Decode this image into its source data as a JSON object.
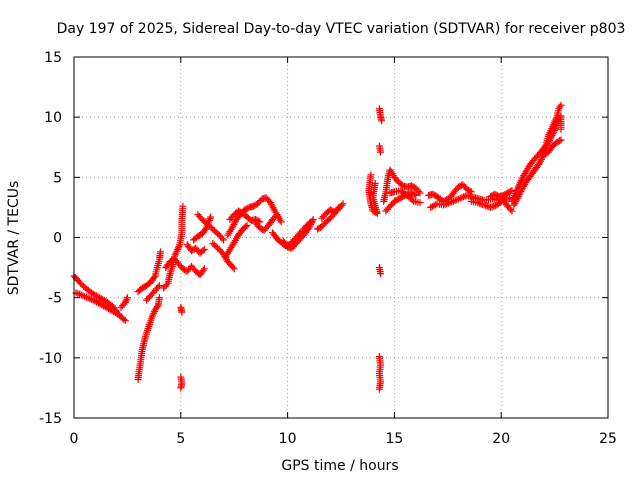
{
  "chart_data": {
    "type": "scatter",
    "title": "Day 197 of 2025, Sidereal Day-to-day VTEC variation (SDTVAR) for receiver p803",
    "xlabel": "GPS time / hours",
    "ylabel": "SDTVAR / TECUs",
    "xlim": [
      0,
      25
    ],
    "ylim": [
      -15,
      15
    ],
    "xticks": [
      0,
      5,
      10,
      15,
      20,
      25
    ],
    "yticks": [
      -15,
      -10,
      -5,
      0,
      5,
      10,
      15
    ],
    "xtick_labels": [
      "0",
      "5",
      "10",
      "15",
      "20",
      "25"
    ],
    "ytick_labels": [
      "-15",
      "-10",
      "-5",
      "0",
      "5",
      "10",
      "15"
    ],
    "grid": true,
    "marker": "plus",
    "color": "#ff0000",
    "series": [
      {
        "name": "SDTVAR",
        "segments": [
          [
            [
              0.0,
              -3.2
            ],
            [
              0.3,
              -3.8
            ],
            [
              0.6,
              -4.3
            ],
            [
              0.9,
              -4.7
            ],
            [
              1.2,
              -5.0
            ],
            [
              1.5,
              -5.3
            ],
            [
              1.8,
              -5.7
            ],
            [
              2.0,
              -6.2
            ],
            [
              2.2,
              -6.6
            ],
            [
              2.4,
              -6.9
            ]
          ],
          [
            [
              0.1,
              -4.6
            ],
            [
              0.5,
              -4.9
            ],
            [
              0.9,
              -5.2
            ],
            [
              1.3,
              -5.6
            ],
            [
              1.7,
              -6.0
            ],
            [
              2.1,
              -6.4
            ]
          ],
          [
            [
              2.2,
              -5.8
            ],
            [
              2.4,
              -5.4
            ],
            [
              2.5,
              -5.0
            ]
          ],
          [
            [
              3.0,
              -11.8
            ],
            [
              3.1,
              -10.5
            ],
            [
              3.2,
              -9.3
            ],
            [
              3.35,
              -8.2
            ],
            [
              3.5,
              -7.4
            ],
            [
              3.65,
              -6.6
            ],
            [
              3.8,
              -6.0
            ],
            [
              3.95,
              -5.6
            ],
            [
              4.0,
              -5.0
            ]
          ],
          [
            [
              3.0,
              -4.5
            ],
            [
              3.2,
              -4.2
            ],
            [
              3.4,
              -4.0
            ],
            [
              3.6,
              -3.7
            ],
            [
              3.8,
              -3.2
            ],
            [
              3.9,
              -2.5
            ],
            [
              4.0,
              -1.8
            ],
            [
              4.05,
              -1.2
            ]
          ],
          [
            [
              3.4,
              -5.2
            ],
            [
              3.6,
              -4.8
            ],
            [
              3.8,
              -4.4
            ],
            [
              4.0,
              -4.0
            ]
          ],
          [
            [
              4.2,
              -4.2
            ],
            [
              4.4,
              -3.8
            ],
            [
              4.5,
              -3.0
            ],
            [
              4.6,
              -2.4
            ],
            [
              4.7,
              -1.6
            ],
            [
              4.85,
              -1.0
            ],
            [
              4.95,
              -0.6
            ],
            [
              5.05,
              0.4
            ],
            [
              5.05,
              1.4
            ],
            [
              5.1,
              2.6
            ]
          ],
          [
            [
              4.3,
              -2.5
            ],
            [
              4.5,
              -2.0
            ],
            [
              4.7,
              -1.8
            ],
            [
              4.9,
              -2.2
            ],
            [
              5.1,
              -2.6
            ],
            [
              5.3,
              -2.8
            ],
            [
              5.5,
              -2.4
            ],
            [
              5.7,
              -2.8
            ],
            [
              5.9,
              -3.1
            ],
            [
              6.1,
              -2.6
            ]
          ],
          [
            [
              5.0,
              -5.8
            ],
            [
              5.05,
              -6.2
            ]
          ],
          [
            [
              5.0,
              -11.6
            ],
            [
              5.05,
              -12.1
            ],
            [
              5.0,
              -12.5
            ]
          ],
          [
            [
              5.3,
              -0.6
            ],
            [
              5.5,
              -1.1
            ],
            [
              5.7,
              -0.9
            ],
            [
              5.9,
              -1.3
            ],
            [
              6.1,
              -1.0
            ]
          ],
          [
            [
              5.6,
              -0.2
            ],
            [
              5.8,
              0.1
            ],
            [
              6.0,
              0.3
            ],
            [
              6.2,
              0.8
            ],
            [
              6.3,
              1.3
            ],
            [
              6.4,
              1.7
            ]
          ],
          [
            [
              5.8,
              1.9
            ],
            [
              6.0,
              1.5
            ],
            [
              6.2,
              1.2
            ],
            [
              6.5,
              0.7
            ],
            [
              6.8,
              0.2
            ],
            [
              7.0,
              -0.2
            ]
          ],
          [
            [
              6.5,
              -0.5
            ],
            [
              6.8,
              -1.0
            ],
            [
              7.0,
              -1.4
            ],
            [
              7.2,
              -2.0
            ],
            [
              7.5,
              -2.6
            ]
          ],
          [
            [
              7.1,
              -1.6
            ],
            [
              7.3,
              -1.0
            ],
            [
              7.5,
              -0.4
            ],
            [
              7.7,
              0.2
            ],
            [
              7.9,
              0.7
            ],
            [
              8.1,
              1.0
            ]
          ],
          [
            [
              7.2,
              0.2
            ],
            [
              7.4,
              0.8
            ],
            [
              7.6,
              1.5
            ],
            [
              7.8,
              2.0
            ],
            [
              8.0,
              2.3
            ],
            [
              8.2,
              2.5
            ],
            [
              8.4,
              2.6
            ],
            [
              8.6,
              2.8
            ],
            [
              8.8,
              3.2
            ],
            [
              9.0,
              3.3
            ],
            [
              9.2,
              2.9
            ],
            [
              9.4,
              2.2
            ],
            [
              9.6,
              1.6
            ]
          ],
          [
            [
              7.3,
              1.5
            ],
            [
              7.5,
              1.9
            ],
            [
              7.7,
              2.2
            ],
            [
              7.9,
              2.0
            ],
            [
              8.1,
              1.7
            ],
            [
              8.3,
              1.4
            ],
            [
              8.5,
              1.5
            ],
            [
              8.7,
              1.3
            ]
          ],
          [
            [
              8.5,
              1.2
            ],
            [
              8.7,
              0.8
            ],
            [
              8.9,
              0.6
            ],
            [
              9.1,
              1.0
            ],
            [
              9.3,
              1.5
            ],
            [
              9.5,
              1.9
            ],
            [
              9.7,
              1.3
            ]
          ],
          [
            [
              9.3,
              0.4
            ],
            [
              9.5,
              -0.1
            ],
            [
              9.7,
              -0.4
            ],
            [
              9.9,
              -0.7
            ],
            [
              10.1,
              -0.6
            ],
            [
              10.3,
              -0.2
            ],
            [
              10.5,
              0.2
            ],
            [
              10.7,
              0.6
            ],
            [
              10.9,
              1.0
            ],
            [
              11.1,
              1.3
            ]
          ],
          [
            [
              9.8,
              -0.3
            ],
            [
              10.0,
              -0.8
            ],
            [
              10.2,
              -0.9
            ],
            [
              10.4,
              -0.5
            ],
            [
              10.6,
              -0.1
            ],
            [
              10.8,
              0.3
            ],
            [
              11.0,
              0.8
            ],
            [
              11.2,
              1.5
            ]
          ],
          [
            [
              11.4,
              0.7
            ],
            [
              11.6,
              0.9
            ],
            [
              11.8,
              1.3
            ],
            [
              12.0,
              1.6
            ],
            [
              12.2,
              2.0
            ],
            [
              12.4,
              2.4
            ],
            [
              12.6,
              2.8
            ]
          ],
          [
            [
              11.6,
              1.6
            ],
            [
              11.8,
              2.0
            ],
            [
              12.0,
              2.3
            ],
            [
              12.2,
              2.1
            ],
            [
              12.4,
              2.5
            ]
          ],
          [
            [
              13.9,
              5.2
            ],
            [
              13.8,
              3.9
            ],
            [
              13.9,
              2.8
            ],
            [
              14.0,
              2.2
            ],
            [
              14.2,
              2.0
            ],
            [
              14.0,
              3.3
            ],
            [
              14.1,
              4.5
            ]
          ],
          [
            [
              14.3,
              10.7
            ],
            [
              14.35,
              10.1
            ],
            [
              14.4,
              9.7
            ]
          ],
          [
            [
              14.3,
              7.6
            ],
            [
              14.35,
              7.1
            ]
          ],
          [
            [
              14.3,
              -2.5
            ],
            [
              14.35,
              -3.0
            ]
          ],
          [
            [
              14.3,
              -9.9
            ],
            [
              14.35,
              -10.6
            ],
            [
              14.3,
              -11.3
            ],
            [
              14.35,
              -12.0
            ],
            [
              14.3,
              -12.6
            ]
          ],
          [
            [
              14.5,
              3.0
            ],
            [
              14.6,
              3.8
            ],
            [
              14.7,
              5.0
            ],
            [
              14.8,
              5.6
            ],
            [
              15.0,
              5.0
            ],
            [
              15.2,
              4.6
            ],
            [
              15.4,
              4.3
            ],
            [
              15.6,
              4.2
            ],
            [
              15.8,
              4.3
            ],
            [
              16.0,
              4.1
            ],
            [
              16.2,
              3.7
            ]
          ],
          [
            [
              14.6,
              2.2
            ],
            [
              14.8,
              2.6
            ],
            [
              15.0,
              3.0
            ],
            [
              15.2,
              3.2
            ],
            [
              15.4,
              3.4
            ],
            [
              15.6,
              3.6
            ],
            [
              15.8,
              3.7
            ],
            [
              16.0,
              3.5
            ]
          ],
          [
            [
              14.8,
              3.7
            ],
            [
              15.0,
              3.8
            ],
            [
              15.3,
              3.9
            ],
            [
              15.6,
              3.5
            ],
            [
              15.9,
              3.0
            ],
            [
              16.2,
              2.9
            ]
          ],
          [
            [
              16.6,
              3.5
            ],
            [
              16.8,
              3.6
            ],
            [
              17.0,
              3.4
            ],
            [
              17.3,
              3.0
            ],
            [
              17.6,
              3.3
            ],
            [
              17.8,
              3.8
            ],
            [
              18.0,
              4.2
            ],
            [
              18.2,
              4.4
            ],
            [
              18.4,
              4.0
            ],
            [
              18.6,
              3.8
            ]
          ],
          [
            [
              16.7,
              2.5
            ],
            [
              17.0,
              2.8
            ],
            [
              17.3,
              2.7
            ],
            [
              17.6,
              2.9
            ],
            [
              18.0,
              3.2
            ],
            [
              18.4,
              3.5
            ],
            [
              18.8,
              3.3
            ],
            [
              19.2,
              3.1
            ],
            [
              19.6,
              3.2
            ],
            [
              20.0,
              3.1
            ],
            [
              20.4,
              3.3
            ]
          ],
          [
            [
              18.6,
              3.0
            ],
            [
              18.9,
              2.9
            ],
            [
              19.2,
              2.7
            ],
            [
              19.5,
              2.5
            ],
            [
              19.8,
              2.7
            ],
            [
              20.1,
              3.1
            ],
            [
              20.3,
              2.6
            ],
            [
              20.5,
              2.2
            ]
          ],
          [
            [
              19.5,
              3.4
            ],
            [
              19.7,
              3.6
            ],
            [
              19.9,
              3.4
            ],
            [
              20.1,
              3.5
            ],
            [
              20.3,
              3.7
            ],
            [
              20.5,
              3.9
            ]
          ],
          [
            [
              20.5,
              3.0
            ],
            [
              20.7,
              3.8
            ],
            [
              20.9,
              4.6
            ],
            [
              21.1,
              5.3
            ],
            [
              21.3,
              5.9
            ],
            [
              21.5,
              6.4
            ],
            [
              21.7,
              6.8
            ],
            [
              21.9,
              7.2
            ],
            [
              22.1,
              7.7
            ],
            [
              22.2,
              8.4
            ],
            [
              22.4,
              9.2
            ],
            [
              22.6,
              10.0
            ],
            [
              22.7,
              10.7
            ],
            [
              22.8,
              11.0
            ]
          ],
          [
            [
              20.6,
              2.7
            ],
            [
              20.8,
              3.4
            ],
            [
              21.0,
              4.1
            ],
            [
              21.2,
              4.7
            ],
            [
              21.4,
              5.2
            ],
            [
              21.6,
              5.7
            ],
            [
              21.8,
              6.2
            ],
            [
              22.0,
              6.9
            ],
            [
              22.2,
              7.1
            ],
            [
              22.4,
              7.6
            ],
            [
              22.6,
              7.9
            ],
            [
              22.8,
              8.1
            ]
          ],
          [
            [
              21.9,
              7.0
            ],
            [
              22.1,
              7.5
            ],
            [
              22.3,
              8.2
            ],
            [
              22.5,
              8.9
            ],
            [
              22.6,
              9.5
            ],
            [
              22.8,
              10.1
            ],
            [
              22.8,
              9.0
            ]
          ]
        ]
      }
    ]
  }
}
